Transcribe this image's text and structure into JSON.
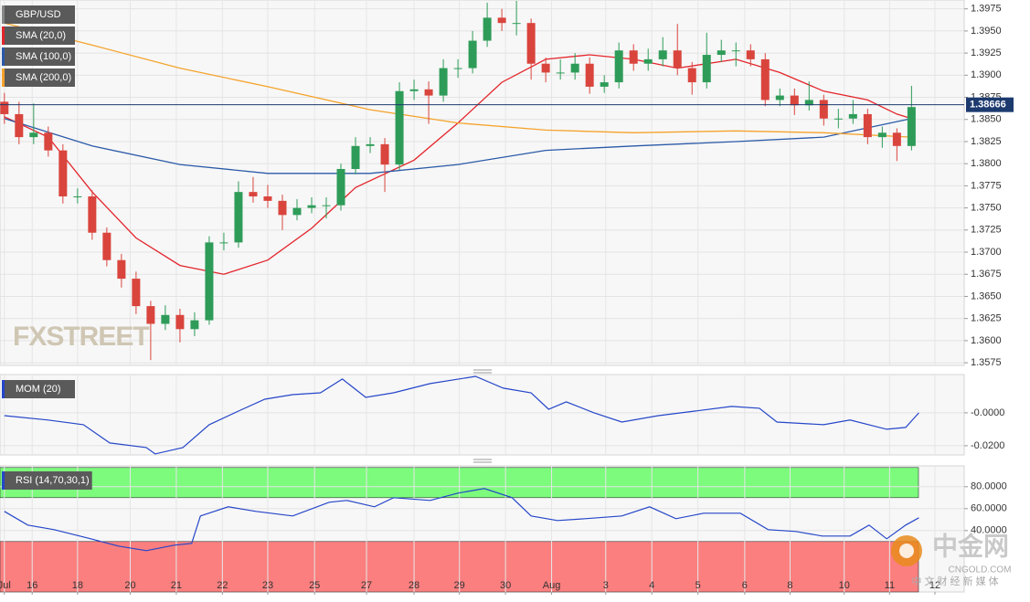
{
  "chart_data": [
    {
      "type": "candlestick",
      "title": "GBP/USD",
      "open": [
        1.387,
        1.3856,
        1.383,
        1.3835,
        1.3815,
        1.3763,
        1.3763,
        1.3722,
        1.3691,
        1.367,
        1.3639,
        1.3619,
        1.3629,
        1.3613,
        1.3623,
        1.3711,
        1.3711,
        1.3768,
        1.3763,
        1.3758,
        1.3742,
        1.375,
        1.3753,
        1.3753,
        1.3794,
        1.382,
        1.3822,
        1.3799,
        1.3882,
        1.3884,
        1.3877,
        1.3908,
        1.3908,
        1.3939,
        1.3965,
        1.3959,
        1.3959,
        1.3913,
        1.3903,
        1.3903,
        1.3913,
        1.3887,
        1.3892,
        1.3928,
        1.3913,
        1.3918,
        1.3928,
        1.3908,
        1.3892,
        1.3923,
        1.3928,
        1.3928,
        1.3918,
        1.3872,
        1.3877,
        1.3866,
        1.3872,
        1.3851,
        1.3851,
        1.3856,
        1.383,
        1.3835,
        1.382
      ],
      "high": [
        1.388,
        1.387,
        1.3868,
        1.3842,
        1.3822,
        1.3772,
        1.377,
        1.3728,
        1.3698,
        1.3678,
        1.3645,
        1.364,
        1.3636,
        1.3632,
        1.3718,
        1.3722,
        1.378,
        1.3785,
        1.3776,
        1.3765,
        1.376,
        1.3762,
        1.3762,
        1.38,
        1.383,
        1.383,
        1.3829,
        1.3892,
        1.3895,
        1.3893,
        1.3918,
        1.3918,
        1.395,
        1.3982,
        1.3975,
        1.3984,
        1.3964,
        1.392,
        1.3918,
        1.3925,
        1.392,
        1.39,
        1.3937,
        1.3935,
        1.393,
        1.3943,
        1.3958,
        1.3915,
        1.3948,
        1.394,
        1.3937,
        1.3935,
        1.3925,
        1.3885,
        1.3885,
        1.3893,
        1.3878,
        1.3862,
        1.3872,
        1.3862,
        1.3842,
        1.384,
        1.3888
      ],
      "low": [
        1.3845,
        1.3822,
        1.3822,
        1.3808,
        1.3755,
        1.3755,
        1.3714,
        1.3684,
        1.366,
        1.363,
        1.3578,
        1.3612,
        1.3598,
        1.3605,
        1.3618,
        1.3702,
        1.3705,
        1.3756,
        1.375,
        1.3725,
        1.3736,
        1.3744,
        1.3738,
        1.3747,
        1.3788,
        1.3812,
        1.3768,
        1.3793,
        1.3872,
        1.3845,
        1.387,
        1.3897,
        1.3902,
        1.3932,
        1.395,
        1.3945,
        1.3895,
        1.3892,
        1.3895,
        1.3895,
        1.3879,
        1.388,
        1.3885,
        1.3905,
        1.3905,
        1.391,
        1.39,
        1.3878,
        1.3885,
        1.3915,
        1.391,
        1.391,
        1.3865,
        1.3865,
        1.3855,
        1.386,
        1.3843,
        1.384,
        1.3845,
        1.3822,
        1.3818,
        1.3803,
        1.3815
      ],
      "close": [
        1.3856,
        1.383,
        1.3835,
        1.3815,
        1.3763,
        1.3763,
        1.3722,
        1.3691,
        1.367,
        1.3639,
        1.3619,
        1.3629,
        1.3613,
        1.3623,
        1.3711,
        1.3711,
        1.3768,
        1.3763,
        1.3758,
        1.3742,
        1.375,
        1.3753,
        1.3753,
        1.3794,
        1.382,
        1.3822,
        1.3799,
        1.3882,
        1.3884,
        1.3877,
        1.3908,
        1.3908,
        1.3939,
        1.3965,
        1.3959,
        1.3959,
        1.3913,
        1.3903,
        1.3903,
        1.3913,
        1.3887,
        1.3892,
        1.3928,
        1.3913,
        1.3918,
        1.3928,
        1.3908,
        1.3892,
        1.3923,
        1.3928,
        1.3928,
        1.3918,
        1.3872,
        1.3877,
        1.3866,
        1.3872,
        1.3851,
        1.3851,
        1.3856,
        1.383,
        1.3835,
        1.382,
        1.3864
      ],
      "up_color": "#2e9c58",
      "down_color": "#d9453d",
      "overlays": [
        {
          "name": "SMA (20,0)",
          "color": "#e3252b",
          "x": [
            0,
            3,
            6,
            9,
            12,
            15,
            18,
            21,
            24,
            28,
            31,
            34,
            37,
            40,
            43,
            46,
            50,
            53,
            56,
            59,
            61,
            62
          ],
          "values": [
            1.3853,
            1.383,
            1.3768,
            1.3716,
            1.3685,
            1.3675,
            1.3691,
            1.3727,
            1.3773,
            1.3804,
            1.3846,
            1.3892,
            1.3918,
            1.3923,
            1.3918,
            1.3908,
            1.3918,
            1.3903,
            1.3882,
            1.3872,
            1.3856,
            1.3851
          ]
        },
        {
          "name": "SMA (100,0)",
          "color": "#2b5aa8",
          "x": [
            0,
            6,
            12,
            18,
            25,
            31,
            37,
            43,
            50,
            56,
            62
          ],
          "values": [
            1.3851,
            1.382,
            1.3799,
            1.3789,
            1.3789,
            1.3799,
            1.3815,
            1.382,
            1.3825,
            1.383,
            1.3851
          ]
        },
        {
          "name": "SMA (200,0)",
          "color": "#f5a32c",
          "x": [
            0,
            6,
            12,
            18,
            25,
            31,
            37,
            43,
            50,
            56,
            62
          ],
          "values": [
            1.3959,
            1.3934,
            1.3908,
            1.3887,
            1.3861,
            1.3846,
            1.3838,
            1.3835,
            1.3837,
            1.3835,
            1.383
          ]
        }
      ],
      "last_price": 1.38666,
      "last_price_color": "#1c3a6e",
      "xlim": [
        -0.3,
        65.6
      ],
      "ylim": [
        1.3572,
        1.3985
      ],
      "yticks": [
        1.3575,
        {
          "value": 1.36,
          "label": "1.3600"
        },
        1.3625,
        {
          "value": 1.365,
          "label": "1.3650"
        },
        1.3675,
        {
          "value": 1.37,
          "label": "1.3700"
        },
        1.3725,
        {
          "value": 1.375,
          "label": "1.3750"
        },
        1.3775,
        {
          "value": 1.38,
          "label": "1.3800"
        },
        1.3825,
        {
          "value": 1.385,
          "label": "1.3850"
        },
        1.3875,
        {
          "value": 1.39,
          "label": "1.3900"
        },
        1.3925,
        {
          "value": 1.395,
          "label": "1.3950"
        },
        1.3975
      ],
      "xticks": [
        {
          "value": 0,
          "label": "Jul"
        },
        {
          "value": 1.9,
          "label": "16"
        },
        {
          "value": 5,
          "label": "18"
        },
        {
          "value": 8.6,
          "label": "20"
        },
        {
          "value": 11.75,
          "label": "21"
        },
        {
          "value": 14.9,
          "label": "22"
        },
        {
          "value": 18,
          "label": "23"
        },
        {
          "value": 21.2,
          "label": "25"
        },
        {
          "value": 24.75,
          "label": "27"
        },
        {
          "value": 28,
          "label": "28"
        },
        {
          "value": 31.1,
          "label": "29"
        },
        {
          "value": 34.25,
          "label": "30"
        },
        {
          "value": 37.4,
          "label": "Aug"
        },
        {
          "value": 41.1,
          "label": "3"
        },
        {
          "value": 44.25,
          "label": "4"
        },
        {
          "value": 47.4,
          "label": "5"
        },
        {
          "value": 50.6,
          "label": "6"
        },
        {
          "value": 53.7,
          "label": "8"
        },
        {
          "value": 57.4,
          "label": "10"
        },
        {
          "value": 60.5,
          "label": "11"
        },
        {
          "value": 63.6,
          "label": "12"
        }
      ],
      "grid": true
    },
    {
      "type": "line",
      "title": "MOM (20)",
      "series": [
        {
          "color": "#2546c9",
          "x": [
            0,
            3,
            5.4,
            7.2,
            9.7,
            10.3,
            12.2,
            14,
            16,
            17.8,
            19.7,
            21.6,
            23.1,
            24.7,
            26.6,
            29.1,
            32.2,
            34.1,
            36,
            37.2,
            38.4,
            40.3,
            42.2,
            44.7,
            47.2,
            49.7,
            51.6,
            52.8,
            56,
            57.8,
            60.3,
            61.6,
            62.5
          ],
          "values": [
            -0.0017,
            -0.0044,
            -0.0072,
            -0.0183,
            -0.0211,
            -0.025,
            -0.0211,
            -0.0072,
            0.0011,
            0.0083,
            0.0111,
            0.0122,
            0.0206,
            0.0094,
            0.0122,
            0.0178,
            0.0222,
            0.015,
            0.0122,
            0.0022,
            0.0067,
            0,
            -0.0056,
            -0.0017,
            0.0011,
            0.0039,
            0.0028,
            -0.0056,
            -0.0072,
            -0.0044,
            -0.01,
            -0.0089,
            0
          ]
        }
      ],
      "xlim": [
        -0.3,
        65.6
      ],
      "ylim": [
        -0.0256,
        0.0233
      ],
      "yticks": [
        {
          "value": 0,
          "label": "-0.0000"
        },
        {
          "value": -0.02,
          "label": "-0.0200"
        }
      ],
      "grid": true
    },
    {
      "type": "line",
      "title": "RSI (14,70,30,1)",
      "series": [
        {
          "color": "#2546c9",
          "x": [
            0,
            1.6,
            3.4,
            5.9,
            7.8,
            9.7,
            11.6,
            12.8,
            13.4,
            15.3,
            17.2,
            19.7,
            22.2,
            23.4,
            25.3,
            26.6,
            29.1,
            31,
            32.8,
            34.7,
            36,
            37.8,
            39.7,
            42.2,
            44.1,
            45.9,
            47.8,
            50.3,
            52.2,
            54.1,
            55.9,
            57.8,
            59.1,
            60.3,
            61.6,
            62.5
          ],
          "values": [
            57.5,
            45,
            40.8,
            32.5,
            25.8,
            21.7,
            26.7,
            28.3,
            53.3,
            61.7,
            57.5,
            53.3,
            65.8,
            67.5,
            61.7,
            70,
            67.5,
            74.2,
            78.3,
            70,
            53.3,
            49.2,
            50.8,
            53.3,
            61.7,
            50.8,
            55.8,
            55.8,
            40.8,
            39.2,
            35,
            35,
            45,
            32.5,
            45,
            51.7
          ]
        }
      ],
      "bands": [
        {
          "from": 70,
          "to": 97.5,
          "color": "#7dfb7d"
        },
        {
          "from": -16,
          "to": 30,
          "color": "#fb7f7f"
        }
      ],
      "xlim": [
        -0.3,
        65.6
      ],
      "ylim": [
        -16,
        99
      ],
      "yticks": [
        {
          "value": 80,
          "label": "80.0000"
        },
        {
          "value": 60,
          "label": "60.0000"
        },
        {
          "value": 40,
          "label": "40.0000"
        }
      ],
      "grid": true
    }
  ],
  "watermarks": {
    "brand": "FXSTREET",
    "site_cn": "中金网",
    "site_url": "CNGOLD.COM",
    "tagline": "中 文 财 经 新 媒 体"
  }
}
